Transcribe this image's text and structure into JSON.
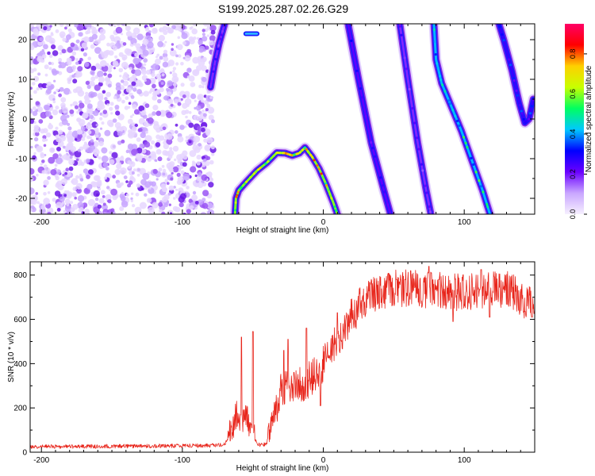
{
  "title": "S199.2025.287.02.26.G29",
  "chart_data": [
    {
      "type": "heatmap",
      "xlabel": "Height of straight line (km)",
      "ylabel": "Frequency (Hz)",
      "xlim": [
        -208,
        150
      ],
      "ylim": [
        -24,
        24
      ],
      "x_ticks": [
        -200,
        -100,
        0,
        100
      ],
      "y_ticks": [
        -20,
        -10,
        0,
        10,
        20
      ],
      "colorbar": {
        "label": "Normalized spectral amplitude",
        "range": [
          0,
          0.95
        ],
        "ticks": [
          0.0,
          0.2,
          0.4,
          0.6,
          0.8
        ],
        "tick_labels": [
          "0.0",
          "0.2",
          "0.4",
          "0.6",
          "0.8"
        ],
        "colors": [
          "#f6f0ff",
          "#c9a6ff",
          "#6a00ff",
          "#0000ff",
          "#00c8ff",
          "#00ff60",
          "#c8ff00",
          "#ffd000",
          "#ff0000",
          "#ff0066"
        ]
      },
      "noise_region": [
        -208,
        -78
      ],
      "tracks": [
        {
          "name": "arc",
          "points": [
            [
              -63,
              -26
            ],
            [
              -62,
              -20
            ],
            [
              -60,
              -18
            ],
            [
              -55,
              -16
            ],
            [
              -47,
              -13
            ],
            [
              -40,
              -11
            ],
            [
              -33,
              -8.5
            ],
            [
              -27,
              -8.6
            ],
            [
              -22,
              -9.2
            ],
            [
              -17,
              -8.6
            ],
            [
              -13,
              -7.2
            ],
            [
              -8,
              -9.5
            ],
            [
              -3,
              -12.5
            ],
            [
              2,
              -16.5
            ],
            [
              7,
              -21
            ],
            [
              12,
              -26
            ]
          ],
          "peak": 0.8
        },
        {
          "name": "left-steep",
          "points": [
            [
              -80,
              8
            ],
            [
              -77,
              14
            ],
            [
              -74,
              19
            ],
            [
              -70,
              24
            ]
          ],
          "peak": 0.25
        },
        {
          "name": "line-a",
          "points": [
            [
              16,
              27
            ],
            [
              25,
              10
            ],
            [
              34,
              -6
            ],
            [
              43,
              -18
            ],
            [
              50,
              -27
            ]
          ],
          "peak": 0.3
        },
        {
          "name": "line-b",
          "points": [
            [
              53,
              27
            ],
            [
              60,
              10
            ],
            [
              67,
              -6
            ],
            [
              73,
              -18
            ],
            [
              78,
              -27
            ]
          ],
          "peak": 0.25
        },
        {
          "name": "line-c",
          "points": [
            [
              78,
              27
            ],
            [
              80,
              15
            ],
            [
              84,
              9
            ],
            [
              91,
              3
            ],
            [
              98,
              -3
            ],
            [
              106,
              -11
            ],
            [
              113,
              -18
            ],
            [
              120,
              -26
            ]
          ],
          "peak": 0.55
        },
        {
          "name": "line-d",
          "points": [
            [
              122,
              27
            ],
            [
              128,
              20
            ],
            [
              134,
              12
            ],
            [
              139,
              4
            ],
            [
              143,
              -1
            ],
            [
              146,
              0
            ],
            [
              149,
              5
            ]
          ],
          "peak": 0.35
        }
      ]
    },
    {
      "type": "line",
      "xlabel": "Height of straight line (km)",
      "ylabel": "SNR (10 * v/v)",
      "xlim": [
        -208,
        150
      ],
      "ylim": [
        0,
        860
      ],
      "x_ticks": [
        -200,
        -100,
        0,
        100
      ],
      "y_ticks": [
        0,
        200,
        400,
        600,
        800
      ],
      "color": "#e8261c",
      "profile": [
        [
          -208,
          25
        ],
        [
          -120,
          28
        ],
        [
          -80,
          30
        ],
        [
          -70,
          35
        ],
        [
          -65,
          90
        ],
        [
          -62,
          170
        ],
        [
          -58,
          120
        ],
        [
          -55,
          160
        ],
        [
          -52,
          110
        ],
        [
          -48,
          50
        ],
        [
          -45,
          30
        ],
        [
          -40,
          40
        ],
        [
          -36,
          160
        ],
        [
          -30,
          270
        ],
        [
          -25,
          290
        ],
        [
          -20,
          310
        ],
        [
          -15,
          300
        ],
        [
          -10,
          330
        ],
        [
          -5,
          360
        ],
        [
          0,
          400
        ],
        [
          5,
          450
        ],
        [
          10,
          500
        ],
        [
          15,
          560
        ],
        [
          20,
          610
        ],
        [
          25,
          650
        ],
        [
          30,
          700
        ],
        [
          40,
          730
        ],
        [
          50,
          740
        ],
        [
          60,
          740
        ],
        [
          70,
          735
        ],
        [
          80,
          730
        ],
        [
          90,
          725
        ],
        [
          100,
          720
        ],
        [
          110,
          725
        ],
        [
          120,
          730
        ],
        [
          130,
          735
        ],
        [
          140,
          700
        ],
        [
          145,
          660
        ],
        [
          150,
          690
        ]
      ],
      "spikes": [
        [
          -58,
          520
        ],
        [
          -50,
          545
        ],
        [
          -28,
          460
        ],
        [
          -25,
          510
        ],
        [
          -12,
          560
        ],
        [
          -2,
          210
        ],
        [
          10,
          630
        ],
        [
          52,
          780
        ],
        [
          58,
          780
        ],
        [
          62,
          820
        ],
        [
          75,
          840
        ],
        [
          82,
          780
        ],
        [
          92,
          590
        ],
        [
          112,
          825
        ],
        [
          118,
          610
        ],
        [
          148,
          610
        ]
      ]
    }
  ]
}
